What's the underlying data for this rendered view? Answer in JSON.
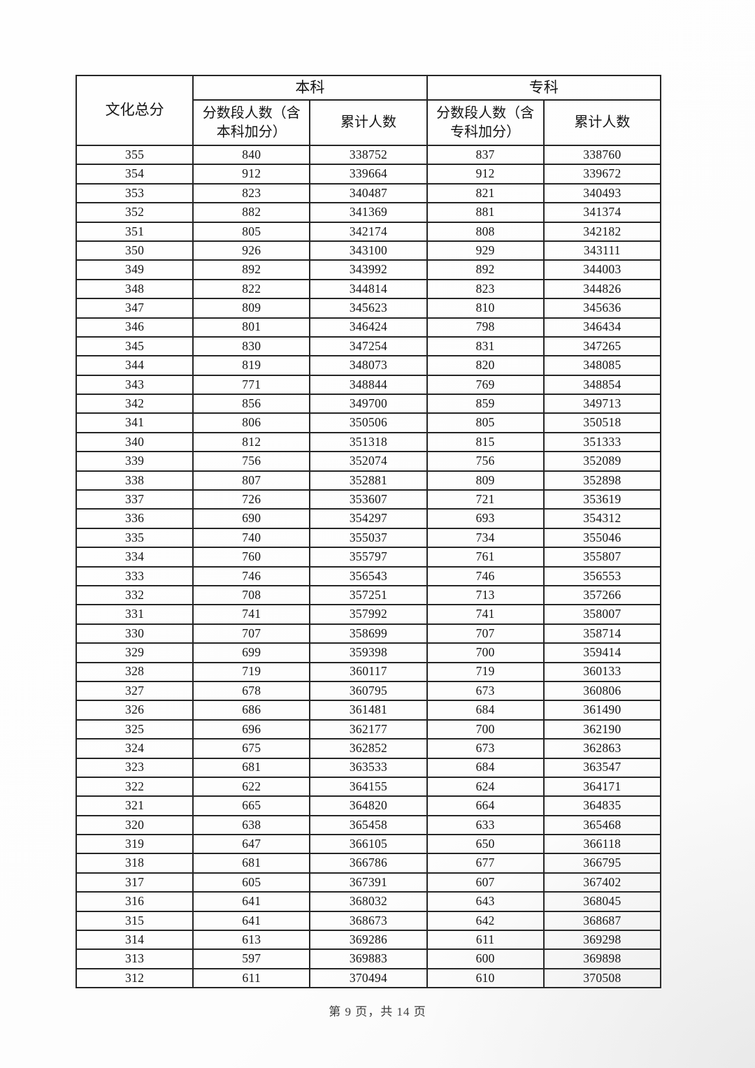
{
  "page": {
    "footer": "第 9 页，共 14 页"
  },
  "table": {
    "top_header": {
      "total": "文化总分",
      "benke": "本科",
      "zhuanke": "专科"
    },
    "sub_headers": {
      "benke_segment": "分数段人数（含本科加分）",
      "benke_cumulative": "累计人数",
      "zhuanke_segment": "分数段人数（含专科加分）",
      "zhuanke_cumulative": "累计人数"
    },
    "rows": [
      [
        355,
        840,
        338752,
        837,
        338760
      ],
      [
        354,
        912,
        339664,
        912,
        339672
      ],
      [
        353,
        823,
        340487,
        821,
        340493
      ],
      [
        352,
        882,
        341369,
        881,
        341374
      ],
      [
        351,
        805,
        342174,
        808,
        342182
      ],
      [
        350,
        926,
        343100,
        929,
        343111
      ],
      [
        349,
        892,
        343992,
        892,
        344003
      ],
      [
        348,
        822,
        344814,
        823,
        344826
      ],
      [
        347,
        809,
        345623,
        810,
        345636
      ],
      [
        346,
        801,
        346424,
        798,
        346434
      ],
      [
        345,
        830,
        347254,
        831,
        347265
      ],
      [
        344,
        819,
        348073,
        820,
        348085
      ],
      [
        343,
        771,
        348844,
        769,
        348854
      ],
      [
        342,
        856,
        349700,
        859,
        349713
      ],
      [
        341,
        806,
        350506,
        805,
        350518
      ],
      [
        340,
        812,
        351318,
        815,
        351333
      ],
      [
        339,
        756,
        352074,
        756,
        352089
      ],
      [
        338,
        807,
        352881,
        809,
        352898
      ],
      [
        337,
        726,
        353607,
        721,
        353619
      ],
      [
        336,
        690,
        354297,
        693,
        354312
      ],
      [
        335,
        740,
        355037,
        734,
        355046
      ],
      [
        334,
        760,
        355797,
        761,
        355807
      ],
      [
        333,
        746,
        356543,
        746,
        356553
      ],
      [
        332,
        708,
        357251,
        713,
        357266
      ],
      [
        331,
        741,
        357992,
        741,
        358007
      ],
      [
        330,
        707,
        358699,
        707,
        358714
      ],
      [
        329,
        699,
        359398,
        700,
        359414
      ],
      [
        328,
        719,
        360117,
        719,
        360133
      ],
      [
        327,
        678,
        360795,
        673,
        360806
      ],
      [
        326,
        686,
        361481,
        684,
        361490
      ],
      [
        325,
        696,
        362177,
        700,
        362190
      ],
      [
        324,
        675,
        362852,
        673,
        362863
      ],
      [
        323,
        681,
        363533,
        684,
        363547
      ],
      [
        322,
        622,
        364155,
        624,
        364171
      ],
      [
        321,
        665,
        364820,
        664,
        364835
      ],
      [
        320,
        638,
        365458,
        633,
        365468
      ],
      [
        319,
        647,
        366105,
        650,
        366118
      ],
      [
        318,
        681,
        366786,
        677,
        366795
      ],
      [
        317,
        605,
        367391,
        607,
        367402
      ],
      [
        316,
        641,
        368032,
        643,
        368045
      ],
      [
        315,
        641,
        368673,
        642,
        368687
      ],
      [
        314,
        613,
        369286,
        611,
        369298
      ],
      [
        313,
        597,
        369883,
        600,
        369898
      ],
      [
        312,
        611,
        370494,
        610,
        370508
      ]
    ]
  }
}
